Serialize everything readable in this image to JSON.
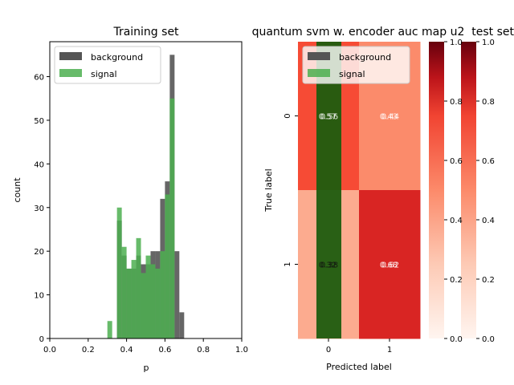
{
  "chart_data": [
    {
      "type": "bar",
      "subtype": "histogram",
      "title": "Training set",
      "xlabel": "p",
      "ylabel": "count",
      "xlim": [
        0,
        1
      ],
      "ylim": [
        0,
        68
      ],
      "xticks": [
        "0.0",
        "0.2",
        "0.4",
        "0.6",
        "0.8",
        "1.0"
      ],
      "yticks": [
        "0",
        "10",
        "20",
        "30",
        "40",
        "50",
        "60"
      ],
      "legend_position": "top-left",
      "series": [
        {
          "name": "background",
          "color": "#555555",
          "bin_width": 0.025,
          "bins": [
            0.325,
            0.35,
            0.375,
            0.4,
            0.425,
            0.45,
            0.475,
            0.5,
            0.525,
            0.55,
            0.575,
            0.6,
            0.625,
            0.65,
            0.675
          ],
          "values": [
            0,
            27,
            19,
            16,
            16,
            19,
            17,
            17,
            20,
            20,
            32,
            36,
            65,
            20,
            6
          ]
        },
        {
          "name": "signal",
          "color": "#4caf50",
          "bin_width": 0.025,
          "bins": [
            0.3,
            0.325,
            0.35,
            0.375,
            0.4,
            0.425,
            0.45,
            0.475,
            0.5,
            0.525,
            0.55,
            0.575,
            0.6,
            0.625,
            0.65
          ],
          "values": [
            4,
            0,
            30,
            21,
            16,
            18,
            23,
            15,
            19,
            17,
            16,
            20,
            33,
            55,
            0
          ]
        }
      ]
    },
    {
      "type": "heatmap",
      "title": "quantum svm w. encoder auc map u2",
      "xlabel": "Predicted label",
      "ylabel": "True label",
      "x_categories": [
        "0",
        "1"
      ],
      "y_categories": [
        "0",
        "1"
      ],
      "layers": [
        {
          "values": [
            [
              "0.57",
              "0.43"
            ],
            [
              "0.32",
              "0.68"
            ]
          ],
          "colors": [
            [
              "#f64b35",
              "#fb8b6b"
            ],
            [
              "#fcab8f",
              "#d92523"
            ]
          ]
        },
        {
          "values": [
            [
              "0.56",
              "0.44"
            ],
            [
              "0.38",
              "0.62"
            ]
          ],
          "colors": [
            [
              "#f5503a",
              "#fc8262"
            ],
            [
              "#fb8f72",
              "#e12d26"
            ]
          ]
        }
      ],
      "overlay_legend": [
        "background",
        "signal"
      ],
      "overlay_note": "dark green band drawn over column 0"
    },
    {
      "type": "colorbar",
      "colormap": "Reds",
      "ticks": [
        "0.0",
        "0.2",
        "0.4",
        "0.6",
        "0.8",
        "1.0"
      ],
      "count": 2
    }
  ],
  "right_title": "test set"
}
